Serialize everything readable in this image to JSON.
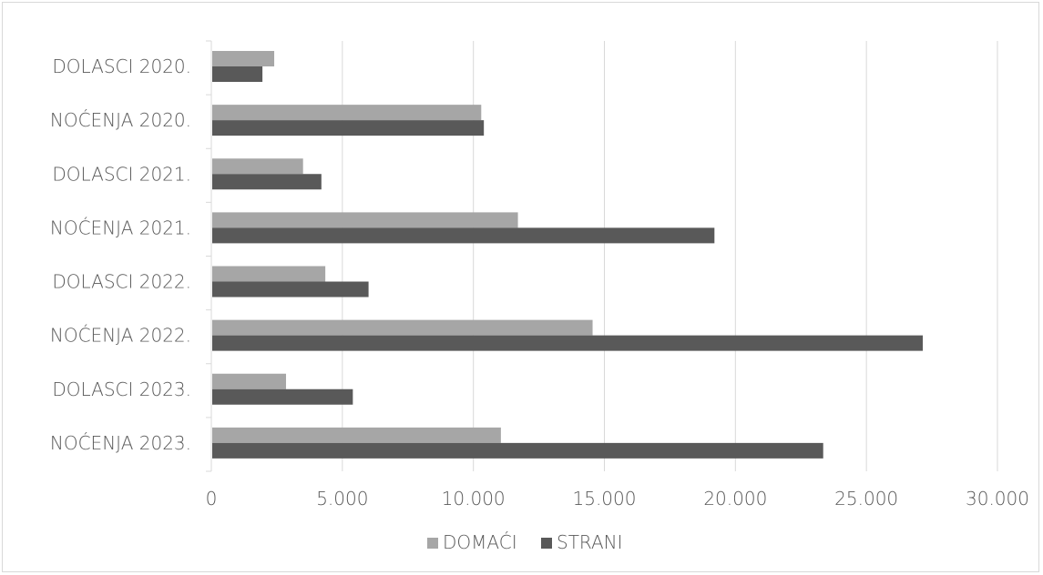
{
  "chart_data": {
    "type": "bar",
    "orientation": "horizontal",
    "categories": [
      "DOLASCI 2020.",
      "NOĆENJA 2020.",
      "DOLASCI 2021.",
      "NOĆENJA 2021.",
      "DOLASCI 2022.",
      "NOĆENJA 2022.",
      "DOLASCI 2023.",
      "NOĆENJA 2023."
    ],
    "series": [
      {
        "name": "DOMAĆI",
        "color": "#a6a6a6",
        "values": [
          2400,
          10300,
          3500,
          11700,
          4350,
          14550,
          2850,
          11050
        ]
      },
      {
        "name": "STRANI",
        "color": "#595959",
        "values": [
          1950,
          10400,
          4200,
          19200,
          6000,
          27150,
          5400,
          23350
        ]
      }
    ],
    "xlim": [
      0,
      30000
    ],
    "xticks": [
      0,
      5000,
      10000,
      15000,
      20000,
      25000,
      30000
    ],
    "xtick_labels": [
      "0",
      "5.000",
      "10.000",
      "15.000",
      "20.000",
      "25.000",
      "30.000"
    ],
    "grid": "vertical",
    "legend_position": "bottom",
    "title": "",
    "xlabel": "",
    "ylabel": ""
  }
}
